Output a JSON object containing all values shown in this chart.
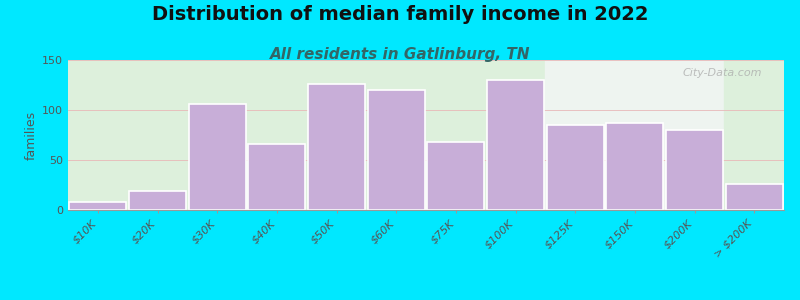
{
  "title": "Distribution of median family income in 2022",
  "subtitle": "All residents in Gatlinburg, TN",
  "ylabel": "families",
  "categories": [
    "$10K",
    "$20K",
    "$30K",
    "$40K",
    "$50K",
    "$60K",
    "$75K",
    "$100K",
    "$125K",
    "$150K",
    "$200K",
    "> $200K"
  ],
  "values": [
    8,
    19,
    106,
    66,
    126,
    120,
    68,
    130,
    85,
    87,
    80,
    26
  ],
  "bar_color": "#c8aed8",
  "bar_edgecolor": "#ffffff",
  "ylim": [
    0,
    150
  ],
  "yticks": [
    0,
    50,
    100,
    150
  ],
  "bg_outer": "#00e8ff",
  "bg_plot_left": "#ddf0dc",
  "bg_plot_right": "#eef4f0",
  "bg_plot_far_right": "#ddf0dc",
  "grid_color": "#e8b8b8",
  "title_fontsize": 14,
  "subtitle_fontsize": 11,
  "ylabel_fontsize": 9,
  "watermark": "City-Data.com",
  "subtitle_color": "#336666"
}
